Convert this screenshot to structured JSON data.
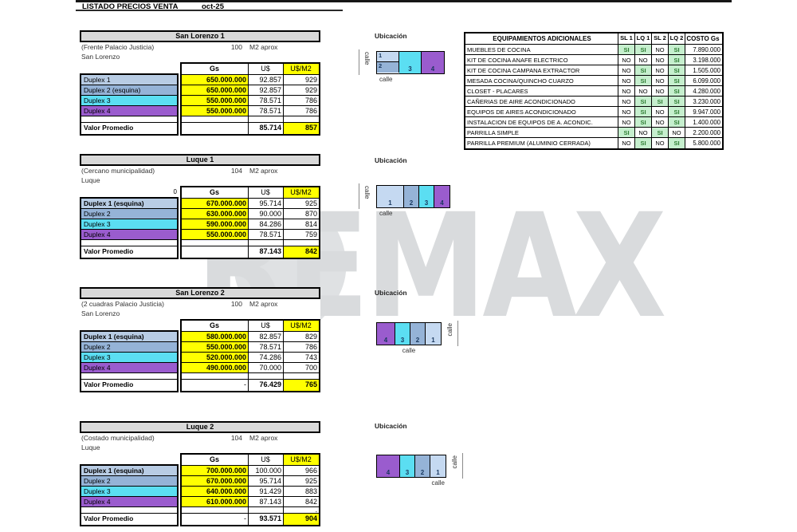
{
  "header": {
    "title": "LISTADO PRECIOS VENTA",
    "date": "oct-25"
  },
  "watermark": {
    "text": "REMAX",
    "color": "#d9dbdd",
    "balloon_color": "#dfe1e3"
  },
  "labels": {
    "ubicacion": "Ubicación",
    "calle": "calle"
  },
  "colors": {
    "blue1": "#b8cce4",
    "blue2": "#95b3d7",
    "cyan": "#5bdef2",
    "purple": "#9a5cce",
    "blue1d": "#c5d9f1",
    "yellow": "#ffff00",
    "title_bg": "#d9d9d9",
    "si_bg": "#c6efce",
    "si_text": "#2e7d32"
  },
  "tables": [
    {
      "title": "San Lorenzo 1",
      "subtitle": "(Frente Palacio Justicia)",
      "area": "100",
      "area_unit": "M2 aprox",
      "city": "San Lorenzo",
      "pre_header": "",
      "columns": [
        "Gs",
        "U$",
        "U$/M2"
      ],
      "rows": [
        {
          "label": "Duplex 1",
          "color": "blue1",
          "bold": false,
          "gs": "650.000.000",
          "us": "92.857",
          "usm2": "929"
        },
        {
          "label": "Duplex 2 (esquina)",
          "color": "blue2",
          "bold": false,
          "gs": "650.000.000",
          "us": "92.857",
          "usm2": "929"
        },
        {
          "label": "Duplex 3",
          "color": "cyan",
          "bold": false,
          "gs": "550.000.000",
          "us": "78.571",
          "usm2": "786"
        },
        {
          "label": "Duplex 4",
          "color": "purple",
          "bold": false,
          "gs": "550.000.000",
          "us": "78.571",
          "usm2": "786"
        }
      ],
      "spacer_usm2": "",
      "promedio": {
        "label": "Valor Promedio",
        "gs": "",
        "us": "85.714",
        "usm2": "857"
      },
      "diagram": {
        "stack_first_two": true,
        "calle_side": "left",
        "calle_bottom": "left",
        "cells": [
          {
            "n": "1",
            "color": "blue1d",
            "w": 1
          },
          {
            "n": "2",
            "color": "blue2",
            "w": 1
          },
          {
            "n": "3",
            "color": "cyan",
            "w": 1
          },
          {
            "n": "4",
            "color": "purple",
            "w": 1
          }
        ]
      }
    },
    {
      "title": "Luque 1",
      "subtitle": "(Cercano municipalidad)",
      "area": "104",
      "area_unit": "M2 aprox",
      "city": "Luque",
      "pre_header": "0",
      "columns": [
        "Gs",
        "U$",
        "U$/M2"
      ],
      "rows": [
        {
          "label": "Duplex 1 (esquina)",
          "color": "blue1",
          "bold": true,
          "gs": "670.000.000",
          "us": "95.714",
          "usm2": "925"
        },
        {
          "label": "Duplex 2",
          "color": "blue2",
          "bold": false,
          "gs": "630.000.000",
          "us": "90.000",
          "usm2": "870"
        },
        {
          "label": "Duplex 3",
          "color": "cyan",
          "bold": false,
          "gs": "590.000.000",
          "us": "84.286",
          "usm2": "814"
        },
        {
          "label": "Duplex 4",
          "color": "purple",
          "bold": false,
          "gs": "550.000.000",
          "us": "78.571",
          "usm2": "759"
        }
      ],
      "spacer_usm2": "",
      "promedio": {
        "label": "Valor Promedio",
        "gs": "",
        "us": "87.143",
        "usm2": "842"
      },
      "diagram": {
        "stack_first_two": false,
        "calle_side": "left",
        "calle_bottom": "left",
        "cells": [
          {
            "n": "1",
            "color": "blue1d",
            "w": 1.8
          },
          {
            "n": "2",
            "color": "blue2",
            "w": 1
          },
          {
            "n": "3",
            "color": "cyan",
            "w": 1
          },
          {
            "n": "4",
            "color": "purple",
            "w": 1
          }
        ]
      }
    },
    {
      "title": "San Lorenzo 2",
      "subtitle": "(2 cuadras Palacio Justicia)",
      "area": "100",
      "area_unit": "M2 aprox",
      "city": "San Lorenzo",
      "pre_header": "",
      "columns": [
        "Gs",
        "U$",
        "U$/M2"
      ],
      "rows": [
        {
          "label": "Duplex 1 (esquina)",
          "color": "blue1",
          "bold": true,
          "gs": "580.000.000",
          "us": "82.857",
          "usm2": "829"
        },
        {
          "label": "Duplex 2",
          "color": "blue2",
          "bold": false,
          "gs": "550.000.000",
          "us": "78.571",
          "usm2": "786"
        },
        {
          "label": "Duplex 3",
          "color": "cyan",
          "bold": false,
          "gs": "520.000.000",
          "us": "74.286",
          "usm2": "743"
        },
        {
          "label": "Duplex 4",
          "color": "purple",
          "bold": false,
          "gs": "490.000.000",
          "us": "70.000",
          "usm2": "700"
        }
      ],
      "spacer_usm2": "",
      "promedio": {
        "label": "Valor Promedio",
        "gs": "-",
        "us": "76.429",
        "usm2": "765"
      },
      "diagram": {
        "stack_first_two": false,
        "calle_side": "right",
        "calle_bottom": "center",
        "cells": [
          {
            "n": "4",
            "color": "purple",
            "w": 1.2
          },
          {
            "n": "3",
            "color": "cyan",
            "w": 1
          },
          {
            "n": "2",
            "color": "blue2",
            "w": 1
          },
          {
            "n": "1",
            "color": "blue1d",
            "w": 1
          }
        ]
      }
    },
    {
      "title": "Luque 2",
      "subtitle": "(Costado municipalidad)",
      "area": "104",
      "area_unit": "M2 aprox",
      "city": "Luque",
      "pre_header": "",
      "columns": [
        "Gs",
        "U$",
        "U$/M2"
      ],
      "rows": [
        {
          "label": "Duplex 1 (esquina)",
          "color": "blue1",
          "bold": true,
          "gs": "700.000.000",
          "us": "100.000",
          "usm2": "966"
        },
        {
          "label": "Duplex 2",
          "color": "blue2",
          "bold": false,
          "gs": "670.000.000",
          "us": "95.714",
          "usm2": "925"
        },
        {
          "label": "Duplex 3",
          "color": "cyan",
          "bold": false,
          "gs": "640.000.000",
          "us": "91.429",
          "usm2": "883"
        },
        {
          "label": "Duplex 4",
          "color": "purple",
          "bold": false,
          "gs": "610.000.000",
          "us": "87.143",
          "usm2": "842"
        }
      ],
      "spacer_usm2": "-",
      "promedio": {
        "label": "Valor Promedio",
        "gs": "-",
        "us": "93.571",
        "usm2": "904"
      },
      "diagram": {
        "stack_first_two": false,
        "calle_side": "right",
        "calle_bottom": "right",
        "cells": [
          {
            "n": "4",
            "color": "purple",
            "w": 1.5
          },
          {
            "n": "3",
            "color": "cyan",
            "w": 1
          },
          {
            "n": "2",
            "color": "blue2",
            "w": 1
          },
          {
            "n": "1",
            "color": "blue1d",
            "w": 1
          }
        ]
      }
    }
  ],
  "equipment": {
    "title": "EQUIPAMIENTOS ADICIONALES",
    "columns": [
      "SL 1",
      "LQ 1",
      "SL 2",
      "LQ 2",
      "COSTO Gs"
    ],
    "rows": [
      {
        "name": "MUEBLES DE COCINA",
        "vals": [
          "SI",
          "SI",
          "NO",
          "SI"
        ],
        "cost": "7.890.000"
      },
      {
        "name": "KIT DE COCINA ANAFE ELECTRICO",
        "vals": [
          "NO",
          "NO",
          "NO",
          "SI"
        ],
        "cost": "3.198.000"
      },
      {
        "name": "KIT DE COCINA CAMPANA EXTRACTOR",
        "vals": [
          "NO",
          "SI",
          "NO",
          "SI"
        ],
        "cost": "1.505.000"
      },
      {
        "name": "MESADA COCINA/QUINCHO CUARZO",
        "vals": [
          "NO",
          "SI",
          "NO",
          "SI"
        ],
        "cost": "6.099.000"
      },
      {
        "name": "CLOSET - PLACARES",
        "vals": [
          "NO",
          "NO",
          "NO",
          "SI"
        ],
        "cost": "4.280.000"
      },
      {
        "name": "CAÑERIAS DE AIRE ACONDICIONADO",
        "vals": [
          "NO",
          "SI",
          "SI",
          "SI"
        ],
        "cost": "3.230.000"
      },
      {
        "name": "EQUIPOS DE AIRES ACONDICIONADO",
        "vals": [
          "NO",
          "SI",
          "NO",
          "SI"
        ],
        "cost": "9.947.000"
      },
      {
        "name": "INSTALACION DE EQUIPOS DE A. ACONDIC.",
        "vals": [
          "NO",
          "SI",
          "NO",
          "SI"
        ],
        "cost": "1.400.000"
      },
      {
        "name": "PARRILLA SIMPLE",
        "vals": [
          "SI",
          "NO",
          "SI",
          "NO"
        ],
        "cost": "2.200.000"
      },
      {
        "name": "PARRILLA PREMIUM (ALUMINIO CERRADA)",
        "vals": [
          "NO",
          "SI",
          "NO",
          "SI"
        ],
        "cost": "5.800.000"
      }
    ]
  }
}
